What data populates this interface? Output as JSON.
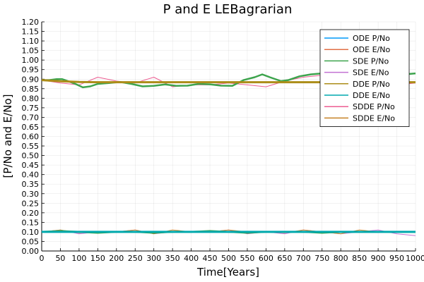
{
  "chart_data": {
    "type": "line",
    "title": "P and E LEBagrarian",
    "xlabel": "Time[Years]",
    "ylabel": "[P/No and E/No]",
    "xlim": [
      0,
      1000
    ],
    "ylim": [
      0,
      1.2
    ],
    "xticks": [
      "0",
      "50",
      "100",
      "150",
      "200",
      "250",
      "300",
      "350",
      "400",
      "450",
      "500",
      "550",
      "600",
      "650",
      "700",
      "750",
      "800",
      "850",
      "900",
      "950",
      "1000"
    ],
    "yticks": [
      "0.00",
      "0.05",
      "0.10",
      "0.15",
      "0.20",
      "0.25",
      "0.30",
      "0.35",
      "0.40",
      "0.45",
      "0.50",
      "0.55",
      "0.60",
      "0.65",
      "0.70",
      "0.75",
      "0.80",
      "0.85",
      "0.90",
      "0.95",
      "1.00",
      "1.05",
      "1.10",
      "1.15",
      "1.20"
    ],
    "grid": true,
    "legend_position": "top-right",
    "x": [
      0,
      50,
      100,
      150,
      200,
      250,
      300,
      350,
      400,
      450,
      500,
      550,
      600,
      650,
      700,
      750,
      800,
      850,
      900,
      950,
      1000
    ],
    "series": [
      {
        "name": "ODE P/No",
        "color": "#009af9",
        "width": 1.5,
        "values": [
          0.1,
          0.1,
          0.1,
          0.1,
          0.1,
          0.1,
          0.1,
          0.1,
          0.1,
          0.1,
          0.1,
          0.1,
          0.1,
          0.1,
          0.1,
          0.1,
          0.1,
          0.1,
          0.1,
          0.1,
          0.1
        ]
      },
      {
        "name": "ODE E/No",
        "color": "#e26f46",
        "width": 1.5,
        "values": [
          0.895,
          0.889,
          0.885,
          0.884,
          0.884,
          0.884,
          0.884,
          0.884,
          0.884,
          0.884,
          0.884,
          0.884,
          0.884,
          0.884,
          0.884,
          0.884,
          0.884,
          0.884,
          0.884,
          0.884,
          0.884
        ]
      },
      {
        "name": "SDE P/No",
        "color": "#3da44d",
        "width": 2.5,
        "values": [
          0.1,
          0.105,
          0.1,
          0.095,
          0.1,
          0.1,
          0.095,
          0.1,
          0.1,
          0.105,
          0.1,
          0.095,
          0.1,
          0.1,
          0.1,
          0.095,
          0.1,
          0.1,
          0.1,
          0.1,
          0.1
        ]
      },
      {
        "name": "SDE E/No",
        "color": "#c271d2",
        "width": 1,
        "values": [
          0.1,
          0.11,
          0.09,
          0.1,
          0.1,
          0.11,
          0.09,
          0.1,
          0.1,
          0.1,
          0.11,
          0.09,
          0.1,
          0.09,
          0.11,
          0.1,
          0.09,
          0.1,
          0.11,
          0.09,
          0.08
        ]
      },
      {
        "name": "DDE P/No",
        "color": "#ac8d18",
        "width": 3,
        "values": [
          0.895,
          0.889,
          0.885,
          0.884,
          0.884,
          0.884,
          0.884,
          0.884,
          0.884,
          0.884,
          0.884,
          0.884,
          0.884,
          0.884,
          0.884,
          0.884,
          0.884,
          0.884,
          0.884,
          0.884,
          0.884
        ]
      },
      {
        "name": "DDE E/No",
        "color": "#00a9ad",
        "width": 3,
        "values": [
          0.1,
          0.1,
          0.1,
          0.1,
          0.1,
          0.1,
          0.1,
          0.1,
          0.1,
          0.1,
          0.1,
          0.1,
          0.1,
          0.1,
          0.1,
          0.1,
          0.1,
          0.1,
          0.1,
          0.1,
          0.1
        ]
      },
      {
        "name": "SDDE P/No",
        "color": "#ed5d92",
        "width": 1,
        "values": [
          0.895,
          0.88,
          0.87,
          0.91,
          0.89,
          0.88,
          0.91,
          0.86,
          0.87,
          0.87,
          0.88,
          0.87,
          0.86,
          0.89,
          0.91,
          0.92,
          0.89,
          0.88,
          0.9,
          0.87,
          0.88
        ]
      },
      {
        "name": "SDDE E/No",
        "color": "#c68125",
        "width": 1,
        "values": [
          0.1,
          0.11,
          0.095,
          0.1,
          0.1,
          0.11,
          0.09,
          0.11,
          0.1,
          0.1,
          0.11,
          0.1,
          0.1,
          0.095,
          0.11,
          0.1,
          0.09,
          0.11,
          0.1,
          0.1,
          0.1
        ]
      }
    ],
    "sde_green_upper": {
      "x": [
        0,
        20,
        40,
        55,
        70,
        90,
        110,
        130,
        150,
        180,
        210,
        240,
        270,
        300,
        330,
        360,
        390,
        420,
        450,
        480,
        510,
        540,
        570,
        590,
        610,
        640,
        660,
        690,
        720,
        750,
        780,
        820,
        860,
        900,
        940,
        970,
        1000
      ],
      "values": [
        0.895,
        0.895,
        0.9,
        0.9,
        0.89,
        0.875,
        0.857,
        0.862,
        0.875,
        0.88,
        0.885,
        0.875,
        0.862,
        0.865,
        0.872,
        0.865,
        0.866,
        0.875,
        0.873,
        0.866,
        0.865,
        0.895,
        0.91,
        0.925,
        0.91,
        0.89,
        0.895,
        0.915,
        0.925,
        0.93,
        0.91,
        0.905,
        0.895,
        0.9,
        0.91,
        0.925,
        0.93
      ]
    }
  }
}
